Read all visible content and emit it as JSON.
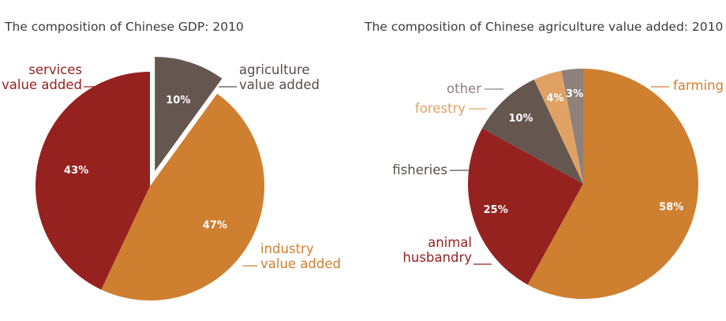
{
  "chart_data": [
    {
      "type": "pie",
      "title": "The composition of Chinese GDP: 2010",
      "slices": [
        {
          "label_lines": [
            "agriculture",
            "value added"
          ],
          "value": 10,
          "value_label": "10%",
          "color": "#665650",
          "label_color": "#5a4e48",
          "exploded": true
        },
        {
          "label_lines": [
            "industry",
            "value added"
          ],
          "value": 47,
          "value_label": "47%",
          "color": "#cf7f30",
          "label_color": "#cf7f30",
          "exploded": false
        },
        {
          "label_lines": [
            "services",
            "value added"
          ],
          "value": 43,
          "value_label": "43%",
          "color": "#962220",
          "label_color": "#962220",
          "exploded": false
        }
      ]
    },
    {
      "type": "pie",
      "title": "The composition of Chinese agriculture value added: 2010",
      "slices": [
        {
          "label_lines": [
            "farming"
          ],
          "value": 58,
          "value_label": "58%",
          "color": "#cf7f30",
          "label_color": "#cf7f30"
        },
        {
          "label_lines": [
            "animal",
            "husbandry"
          ],
          "value": 25,
          "value_label": "25%",
          "color": "#962220",
          "label_color": "#962220"
        },
        {
          "label_lines": [
            "fisheries"
          ],
          "value": 10,
          "value_label": "10%",
          "color": "#665650",
          "label_color": "#5a4e48"
        },
        {
          "label_lines": [
            "forestry"
          ],
          "value": 4,
          "value_label": "4%",
          "color": "#dfa264",
          "label_color": "#dfa264"
        },
        {
          "label_lines": [
            "other"
          ],
          "value": 3,
          "value_label": "3%",
          "color": "#8e807b",
          "label_color": "#8e807b"
        }
      ]
    }
  ]
}
